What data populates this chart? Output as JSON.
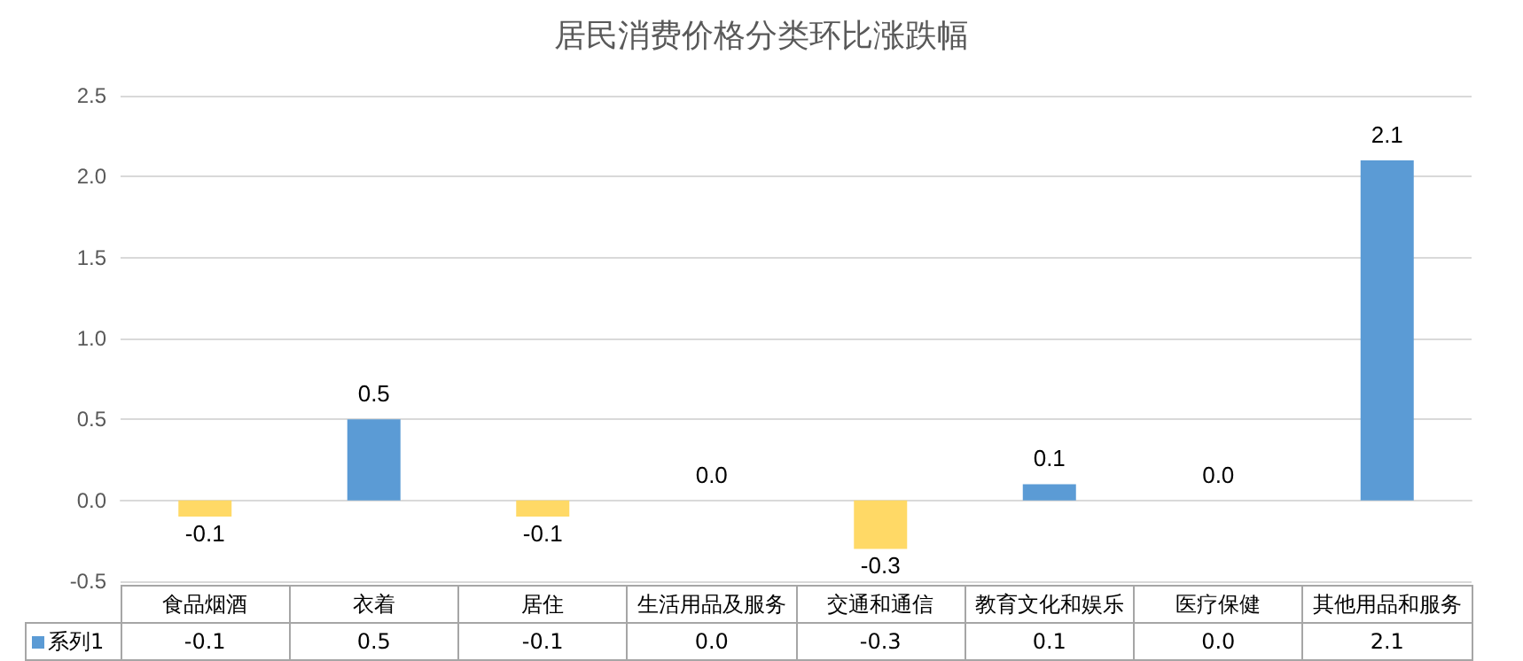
{
  "chart_data": {
    "type": "bar",
    "title": "居民消费价格分类环比涨跌幅",
    "categories": [
      "食品烟酒",
      "衣着",
      "居住",
      "生活用品及服务",
      "交通和通信",
      "教育文化和娱乐",
      "医疗保健",
      "其他用品和服务"
    ],
    "series": [
      {
        "name": "系列1",
        "color": "#5b9bd5",
        "colors": [
          "#ffd966",
          "#5b9bd5",
          "#ffd966",
          "#5b9bd5",
          "#ffd966",
          "#5b9bd5",
          "#5b9bd5",
          "#5b9bd5"
        ],
        "values": [
          -0.1,
          0.5,
          -0.1,
          0.0,
          -0.3,
          0.1,
          0.0,
          2.1
        ],
        "value_labels": [
          "-0.1",
          "0.5",
          "-0.1",
          "0.0",
          "-0.3",
          "0.1",
          "0.0",
          "2.1"
        ]
      }
    ],
    "ylim": [
      -0.5,
      2.5
    ],
    "yticks": [
      "-0.5",
      {
        "value": 0,
        "label": "0.0"
      },
      "0.5",
      {
        "value": 1,
        "label": "1.0"
      },
      "1.5",
      {
        "value": 2,
        "label": "2.0"
      },
      "2.5"
    ],
    "grid": "y",
    "legend": "bottom"
  }
}
